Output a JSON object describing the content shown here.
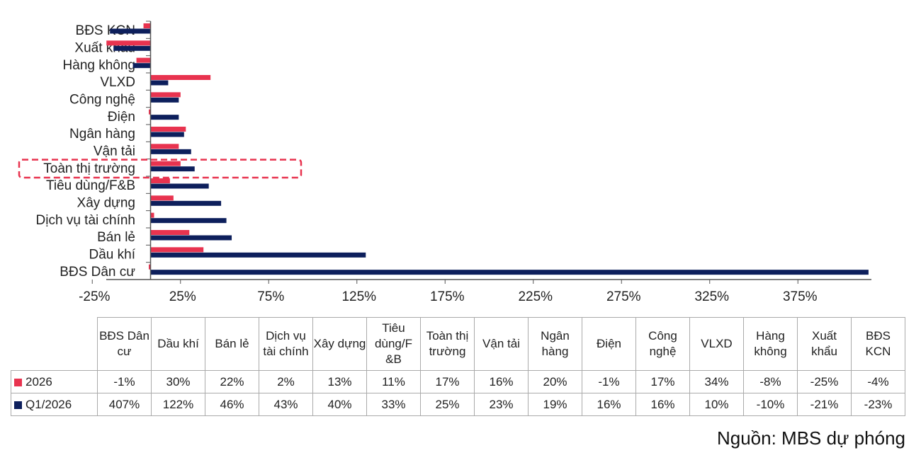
{
  "chart_data": {
    "type": "bar",
    "orientation": "horizontal",
    "categories": [
      "BĐS Dân cư",
      "Dầu khí",
      "Bán lẻ",
      "Dịch vụ tài chính",
      "Xây dựng",
      "Tiêu dùng/F&B",
      "Toàn thị trường",
      "Vận tải",
      "Ngân hàng",
      "Điện",
      "Công nghệ",
      "VLXD",
      "Hàng không",
      "Xuất khẩu",
      "BĐS KCN"
    ],
    "table_headers": [
      "BĐS Dân cư",
      "Dầu khí",
      "Bán lẻ",
      "Dịch vụ tài chính",
      "Xây dựng",
      "Tiêu dùng/F &B",
      "Toàn thị trường",
      "Vận tải",
      "Ngân hàng",
      "Điện",
      "Công nghệ",
      "VLXD",
      "Hàng không",
      "Xuất khẩu",
      "BĐS KCN"
    ],
    "series": [
      {
        "name": "2026",
        "color": "#e8334f",
        "values": [
          -1,
          30,
          22,
          2,
          13,
          11,
          17,
          16,
          20,
          -1,
          17,
          34,
          -8,
          -25,
          -4
        ],
        "labels": [
          "-1%",
          "30%",
          "22%",
          "2%",
          "13%",
          "11%",
          "17%",
          "16%",
          "20%",
          "-1%",
          "17%",
          "34%",
          "-8%",
          "-25%",
          "-4%"
        ]
      },
      {
        "name": "Q1/2026",
        "color": "#0d1f5c",
        "values": [
          407,
          122,
          46,
          43,
          40,
          33,
          25,
          23,
          19,
          16,
          16,
          10,
          -10,
          -21,
          -23
        ],
        "labels": [
          "407%",
          "122%",
          "46%",
          "43%",
          "40%",
          "33%",
          "25%",
          "23%",
          "19%",
          "16%",
          "16%",
          "10%",
          "-10%",
          "-21%",
          "-23%"
        ]
      }
    ],
    "x_ticks": [
      "-25%",
      "25%",
      "75%",
      "125%",
      "175%",
      "225%",
      "275%",
      "325%",
      "375%"
    ],
    "x_tick_values": [
      -25,
      25,
      75,
      125,
      175,
      225,
      275,
      325,
      375
    ],
    "xlim": [
      -25,
      407
    ],
    "highlight": "Toàn thị trường",
    "highlight_color": "#e8334f",
    "grid": false
  },
  "source": "Nguồn: MBS dự phóng"
}
